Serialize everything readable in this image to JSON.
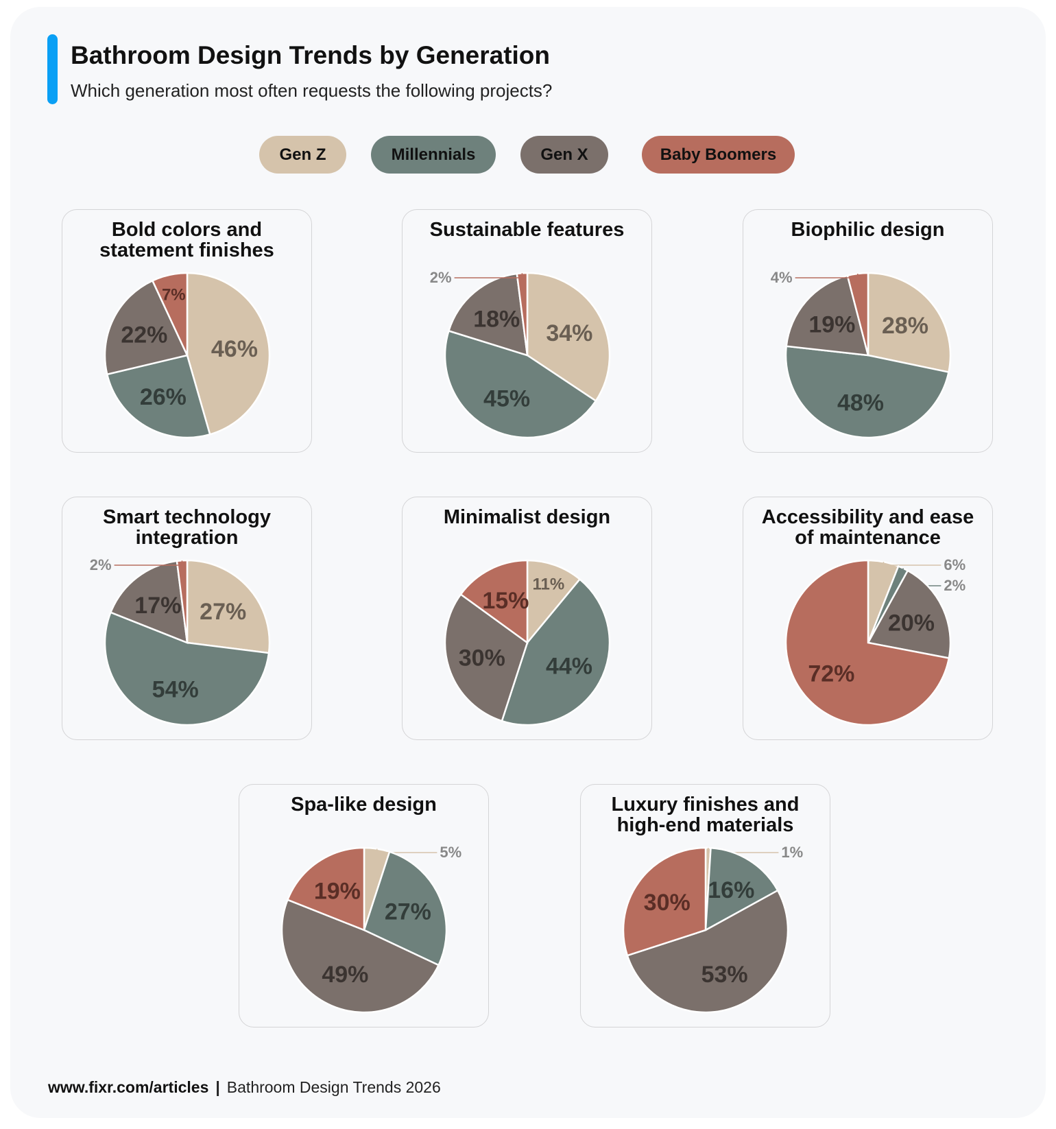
{
  "header": {
    "title": "Bathroom Design Trends by Generation",
    "subtitle": "Which generation most often requests the following projects?"
  },
  "colors": {
    "accent": "#0aa0f5",
    "Gen Z": "#d5c3ab",
    "Millennials": "#6e817c",
    "Gen X": "#7b706b",
    "Baby Boomers": "#b76d5e"
  },
  "legend": [
    "Gen Z",
    "Millennials",
    "Gen X",
    "Baby Boomers"
  ],
  "chart_data": [
    {
      "type": "pie",
      "title": "Bold colors and statement finishes",
      "categories": [
        "Gen Z",
        "Millennials",
        "Gen X",
        "Baby Boomers"
      ],
      "values": [
        46,
        26,
        22,
        7
      ],
      "labels": [
        "46%",
        "26%",
        "22%",
        "7%"
      ]
    },
    {
      "type": "pie",
      "title": "Sustainable features",
      "categories": [
        "Gen Z",
        "Millennials",
        "Gen X",
        "Baby Boomers"
      ],
      "values": [
        34,
        45,
        18,
        2
      ],
      "labels": [
        "34%",
        "45%",
        "18%",
        "2%"
      ]
    },
    {
      "type": "pie",
      "title": "Biophilic design",
      "categories": [
        "Gen Z",
        "Millennials",
        "Gen X",
        "Baby Boomers"
      ],
      "values": [
        28,
        48,
        19,
        4
      ],
      "labels": [
        "28%",
        "48%",
        "19%",
        "4%"
      ]
    },
    {
      "type": "pie",
      "title": "Smart technology integration",
      "categories": [
        "Gen Z",
        "Millennials",
        "Gen X",
        "Baby Boomers"
      ],
      "values": [
        27,
        54,
        17,
        2
      ],
      "labels": [
        "27%",
        "54%",
        "17%",
        "2%"
      ]
    },
    {
      "type": "pie",
      "title": "Minimalist design",
      "categories": [
        "Gen Z",
        "Millennials",
        "Gen X",
        "Baby Boomers"
      ],
      "values": [
        11,
        44,
        30,
        15
      ],
      "labels": [
        "11%",
        "44%",
        "30%",
        "15%"
      ]
    },
    {
      "type": "pie",
      "title": "Accessibility and ease of maintenance",
      "categories": [
        "Gen Z",
        "Millennials",
        "Gen X",
        "Baby Boomers"
      ],
      "values": [
        6,
        2,
        20,
        72
      ],
      "labels": [
        "6%",
        "2%",
        "20%",
        "72%"
      ]
    },
    {
      "type": "pie",
      "title": "Spa-like design",
      "categories": [
        "Gen Z",
        "Millennials",
        "Gen X",
        "Baby Boomers"
      ],
      "values": [
        5,
        27,
        49,
        19
      ],
      "labels": [
        "5%",
        "27%",
        "49%",
        "19%"
      ]
    },
    {
      "type": "pie",
      "title": "Luxury finishes and high-end materials",
      "categories": [
        "Gen Z",
        "Millennials",
        "Gen X",
        "Baby Boomers"
      ],
      "values": [
        1,
        16,
        53,
        30
      ],
      "labels": [
        "1%",
        "16%",
        "53%",
        "30%"
      ]
    }
  ],
  "footer": {
    "source": "www.fixr.com/articles",
    "separator": "|",
    "note": "Bathroom Design Trends 2026"
  }
}
